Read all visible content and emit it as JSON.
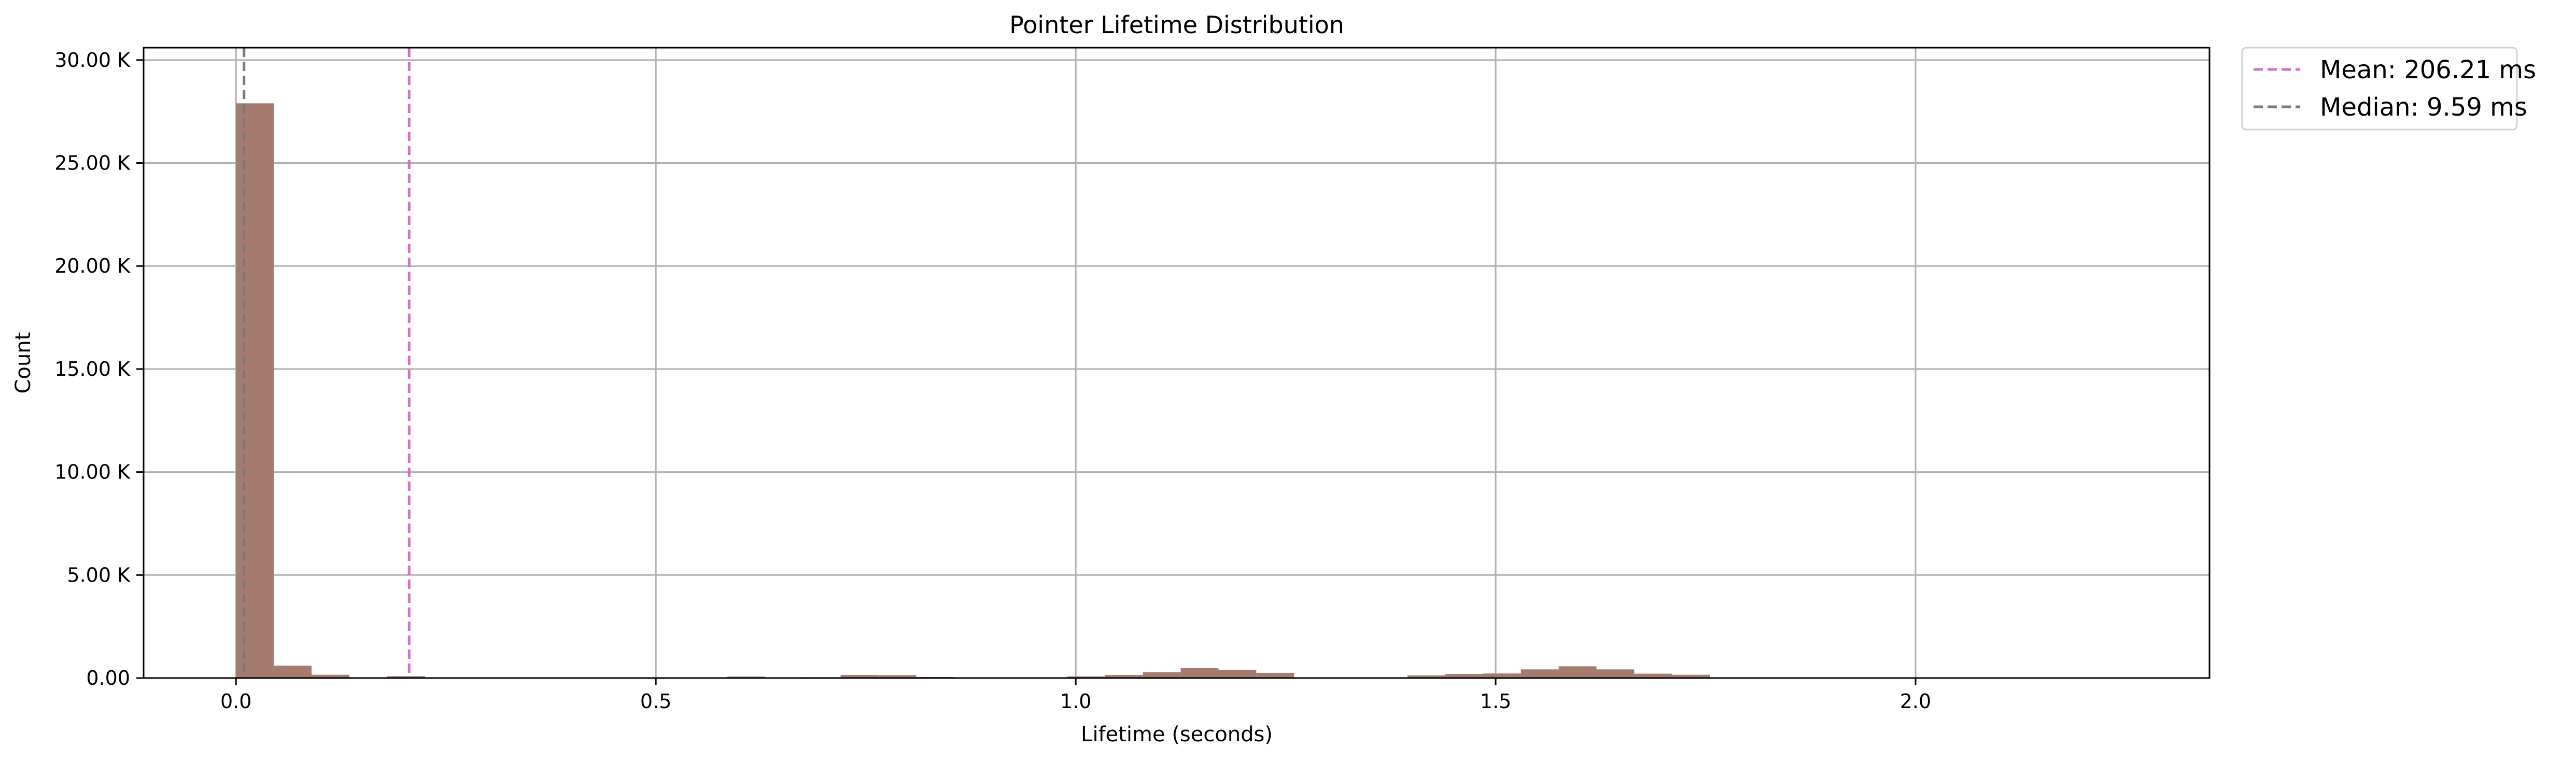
{
  "chart_data": {
    "type": "bar",
    "title": "Pointer Lifetime Distribution",
    "xlabel": "Lifetime (seconds)",
    "ylabel": "Count",
    "xlim": [
      -0.11,
      2.35
    ],
    "ylim": [
      0,
      30600
    ],
    "grid": true,
    "legend_position": "outside-top-right",
    "bar_color": "#a47b6e",
    "bin_width": 0.045,
    "bins": [
      {
        "x0": 0.0,
        "count": 27900
      },
      {
        "x0": 0.045,
        "count": 600
      },
      {
        "x0": 0.09,
        "count": 160
      },
      {
        "x0": 0.18,
        "count": 90
      },
      {
        "x0": 0.54,
        "count": 30
      },
      {
        "x0": 0.585,
        "count": 70
      },
      {
        "x0": 0.675,
        "count": 40
      },
      {
        "x0": 0.72,
        "count": 150
      },
      {
        "x0": 0.765,
        "count": 140
      },
      {
        "x0": 0.81,
        "count": 50
      },
      {
        "x0": 0.99,
        "count": 80
      },
      {
        "x0": 1.035,
        "count": 150
      },
      {
        "x0": 1.08,
        "count": 280
      },
      {
        "x0": 1.125,
        "count": 480
      },
      {
        "x0": 1.17,
        "count": 400
      },
      {
        "x0": 1.215,
        "count": 250
      },
      {
        "x0": 1.26,
        "count": 30
      },
      {
        "x0": 1.395,
        "count": 130
      },
      {
        "x0": 1.44,
        "count": 200
      },
      {
        "x0": 1.485,
        "count": 220
      },
      {
        "x0": 1.53,
        "count": 420
      },
      {
        "x0": 1.575,
        "count": 570
      },
      {
        "x0": 1.62,
        "count": 420
      },
      {
        "x0": 1.665,
        "count": 210
      },
      {
        "x0": 1.71,
        "count": 160
      },
      {
        "x0": 2.1,
        "count": 30
      }
    ],
    "x_ticks": [
      {
        "value": 0.0,
        "label": "0.0"
      },
      {
        "value": 0.5,
        "label": "0.5"
      },
      {
        "value": 1.0,
        "label": "1.0"
      },
      {
        "value": 1.5,
        "label": "1.5"
      },
      {
        "value": 2.0,
        "label": "2.0"
      }
    ],
    "y_ticks": [
      {
        "value": 0,
        "label": "0.00"
      },
      {
        "value": 5000,
        "label": "5.00 K"
      },
      {
        "value": 10000,
        "label": "10.00 K"
      },
      {
        "value": 15000,
        "label": "15.00 K"
      },
      {
        "value": 20000,
        "label": "20.00 K"
      },
      {
        "value": 25000,
        "label": "25.00 K"
      },
      {
        "value": 30000,
        "label": "30.00 K"
      }
    ],
    "reference_lines": [
      {
        "name": "Mean: 206.21 ms",
        "x": 0.20621,
        "color": "#d66fc8",
        "style": "dashed"
      },
      {
        "name": "Median: 9.59 ms",
        "x": 0.00959,
        "color": "#7a7a7a",
        "style": "dashed"
      }
    ]
  }
}
